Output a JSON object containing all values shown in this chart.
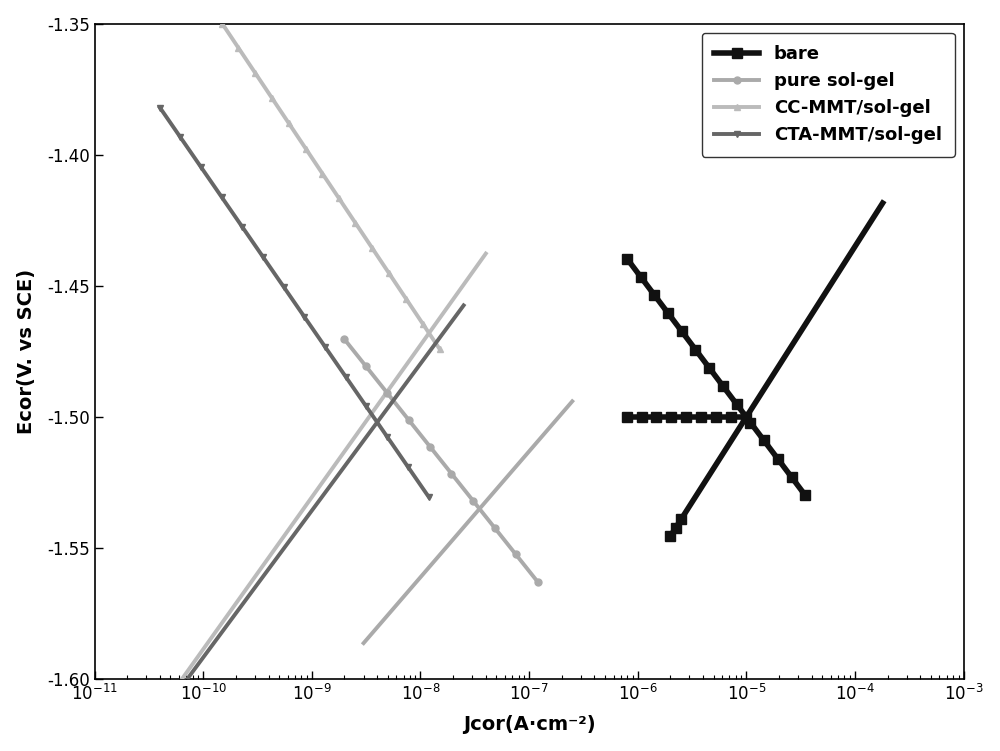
{
  "xlabel": "Jcor(A·cm⁻²)",
  "ylabel": "Ecor(V. vs SCE)",
  "ylim": [
    -1.6,
    -1.35
  ],
  "yticks": [
    -1.6,
    -1.55,
    -1.5,
    -1.45,
    -1.4,
    -1.35
  ],
  "legend_fontsize": 13,
  "axis_fontsize": 14,
  "tick_fontsize": 12,
  "curves": [
    {
      "label": "bare",
      "color": "#111111",
      "lw": 4.0,
      "marker": "s",
      "ms": 7,
      "ecor": -1.5,
      "jcor": 1e-05,
      "ba": 0.065,
      "bc": 0.055,
      "j_an_min": 2e-06,
      "j_an_max": 0.00018,
      "j_cat_min": 8e-07,
      "j_cat_max": 3.5e-05,
      "flat_j_min": 8e-07,
      "flat_j_max": 1e-05,
      "n_markers_cat": 14,
      "n_markers_flat": 9,
      "n_markers_an_near": 3
    },
    {
      "label": "pure sol-gel",
      "color": "#aaaaaa",
      "lw": 2.8,
      "marker": "o",
      "ms": 5,
      "ecor": -1.535,
      "jcor": 3.5e-08,
      "ba": 0.048,
      "bc": 0.052,
      "j_an_min": 3e-09,
      "j_an_max": 2.5e-07,
      "j_cat_min": 2e-09,
      "j_cat_max": 1.2e-07,
      "flat_j_min": null,
      "flat_j_max": null,
      "n_markers_cat": 10,
      "n_markers_flat": 0,
      "n_markers_an_near": 0
    },
    {
      "label": "CC-MMT/sol-gel",
      "color": "#bbbbbb",
      "lw": 2.8,
      "marker": "^",
      "ms": 5,
      "ecor": -1.468,
      "jcor": 1.2e-08,
      "ba": 0.058,
      "bc": 0.062,
      "j_an_min": 4e-11,
      "j_an_max": 4e-08,
      "j_cat_min": 4e-11,
      "j_cat_max": 1.5e-08,
      "flat_j_min": null,
      "flat_j_max": null,
      "n_markers_cat": 14,
      "n_markers_flat": 0,
      "n_markers_an_near": 0
    },
    {
      "label": "CTA-MMT/sol-gel",
      "color": "#666666",
      "lw": 2.8,
      "marker": "v",
      "ms": 5,
      "ecor": -1.502,
      "jcor": 4e-09,
      "ba": 0.056,
      "bc": 0.06,
      "j_an_min": 4e-11,
      "j_an_max": 2.5e-08,
      "j_cat_min": 4e-11,
      "j_cat_max": 1.2e-08,
      "flat_j_min": null,
      "flat_j_max": null,
      "n_markers_cat": 14,
      "n_markers_flat": 0,
      "n_markers_an_near": 0
    }
  ]
}
